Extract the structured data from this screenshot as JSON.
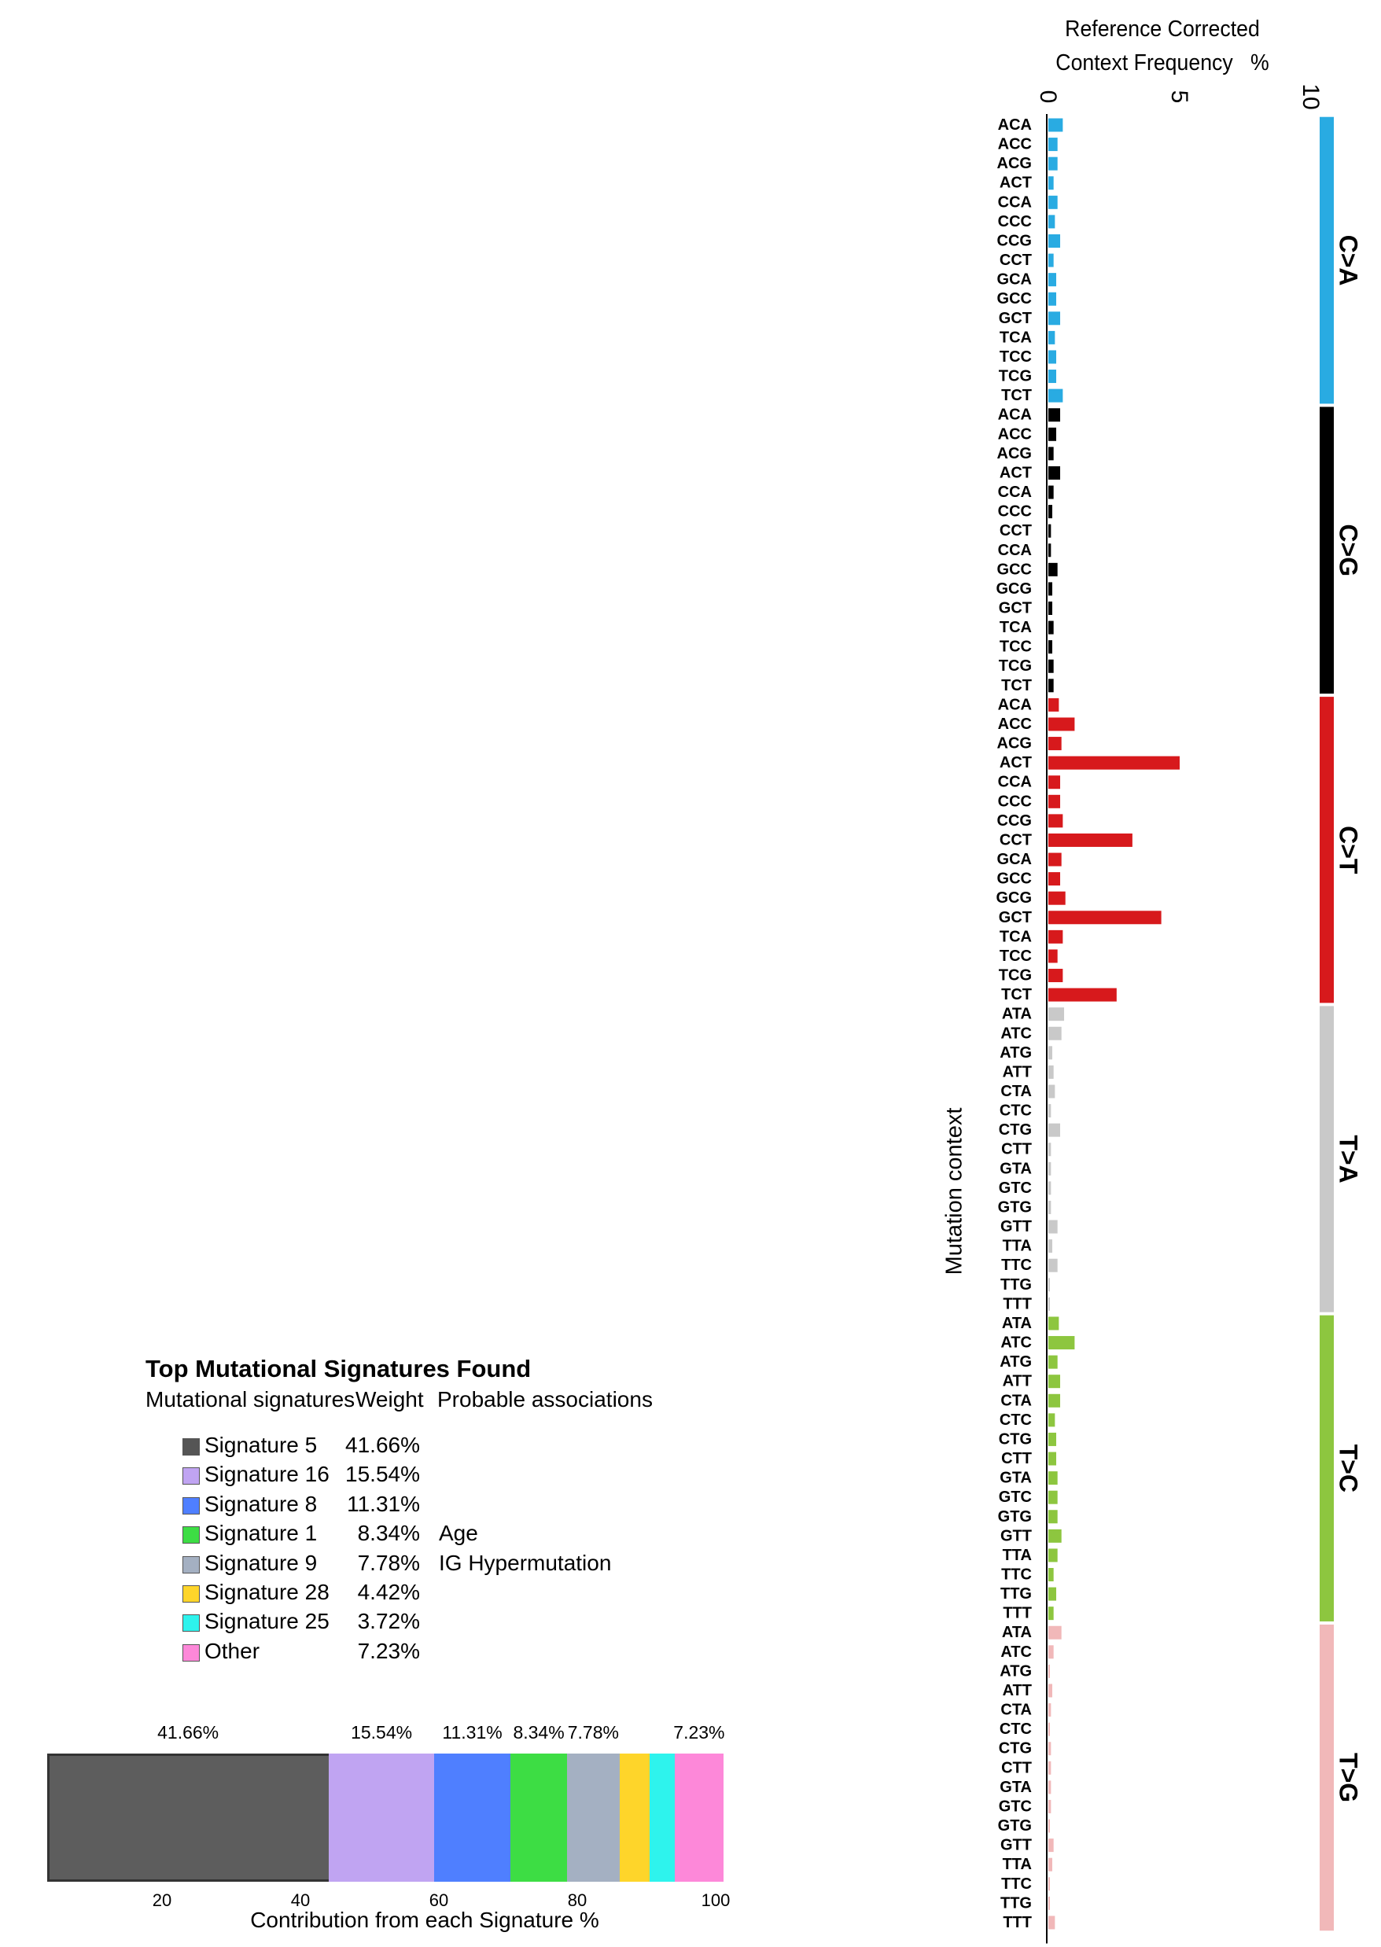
{
  "profile": {
    "title_line1": "Reference Corrected",
    "title_line2": "Context Frequency",
    "title_unit": "%",
    "axis_label": "Mutation context"
  },
  "legend": {
    "title": "Top Mutational Signatures Found",
    "col_signature": "Mutational signatures",
    "col_weight": "Weight",
    "col_assoc": "Probable associations",
    "rows": [
      {
        "name": "Signature 5",
        "weight": "41.66%",
        "assoc": "",
        "color": "#555555"
      },
      {
        "name": "Signature 16",
        "weight": "15.54%",
        "assoc": "",
        "color": "#c0a4f2"
      },
      {
        "name": "Signature 8",
        "weight": "11.31%",
        "assoc": "",
        "color": "#4f7fff"
      },
      {
        "name": "Signature 1",
        "weight": "8.34%",
        "assoc": "Age",
        "color": "#3ddd44"
      },
      {
        "name": "Signature 9",
        "weight": "7.78%",
        "assoc": "IG Hypermutation",
        "color": "#a4b0c2"
      },
      {
        "name": "Signature 28",
        "weight": "4.42%",
        "assoc": "",
        "color": "#fed52a"
      },
      {
        "name": "Signature 25",
        "weight": "3.72%",
        "assoc": "",
        "color": "#2ef3ed"
      },
      {
        "name": "Other",
        "weight": "7.23%",
        "assoc": "",
        "color": "#fd88d9"
      }
    ]
  },
  "stacked": {
    "xlabel": "Contribution from each Signature %",
    "ticks": [
      "20",
      "40",
      "60",
      "80",
      "100"
    ],
    "segment_labels": [
      "41.66%",
      "15.54%",
      "11.31%",
      "8.34%",
      "7.78%",
      "",
      "",
      "7.23%"
    ]
  },
  "chart_data": [
    {
      "type": "bar",
      "orientation": "horizontal",
      "title": "Reference Corrected Context Frequency %",
      "xlabel": "Reference Corrected Context Frequency %",
      "ylabel": "Mutation context",
      "xlim": [
        0,
        10
      ],
      "xticks": [
        0,
        5,
        10
      ],
      "groups": [
        {
          "name": "C>A",
          "color": "#29abe2",
          "categories": [
            "ACA",
            "ACC",
            "ACG",
            "ACT",
            "CCA",
            "CCC",
            "CCG",
            "CCT",
            "GCA",
            "GCC",
            "GCT",
            "TCA",
            "TCC",
            "TCG",
            "TCT"
          ],
          "values": [
            0.55,
            0.35,
            0.35,
            0.2,
            0.35,
            0.25,
            0.45,
            0.2,
            0.3,
            0.3,
            0.45,
            0.25,
            0.3,
            0.3,
            0.55
          ]
        },
        {
          "name": "C>G",
          "color": "#000000",
          "categories": [
            "ACA",
            "ACC",
            "ACG",
            "ACT",
            "CCA",
            "CCC",
            "CCT",
            "CCA",
            "GCC",
            "GCG",
            "GCT",
            "TCA",
            "TCC",
            "TCG",
            "TCT"
          ],
          "values": [
            0.45,
            0.3,
            0.2,
            0.45,
            0.2,
            0.15,
            0.1,
            0.1,
            0.35,
            0.15,
            0.15,
            0.2,
            0.15,
            0.2,
            0.2
          ]
        },
        {
          "name": "C>T",
          "color": "#d7191c",
          "categories": [
            "ACA",
            "ACC",
            "ACG",
            "ACT",
            "CCA",
            "CCC",
            "CCG",
            "CCT",
            "GCA",
            "GCC",
            "GCG",
            "GCT",
            "TCA",
            "TCC",
            "TCG",
            "TCT"
          ],
          "values": [
            0.4,
            1.0,
            0.5,
            5.0,
            0.45,
            0.45,
            0.55,
            3.2,
            0.5,
            0.45,
            0.65,
            4.3,
            0.55,
            0.35,
            0.55,
            2.6
          ]
        },
        {
          "name": "T>A",
          "color": "#c9c9c9",
          "categories": [
            "ATA",
            "ATC",
            "ATG",
            "ATT",
            "CTA",
            "CTC",
            "CTG",
            "CTT",
            "GTA",
            "GTC",
            "GTG",
            "GTT",
            "TTA",
            "TTC",
            "TTG",
            "TTT"
          ],
          "values": [
            0.6,
            0.5,
            0.15,
            0.2,
            0.25,
            0.1,
            0.45,
            0.1,
            0.1,
            0.1,
            0.1,
            0.35,
            0.15,
            0.35,
            0.05,
            0.05
          ]
        },
        {
          "name": "T>C",
          "color": "#8dc63f",
          "categories": [
            "ATA",
            "ATC",
            "ATG",
            "ATT",
            "CTA",
            "CTC",
            "CTG",
            "CTT",
            "GTA",
            "GTC",
            "GTG",
            "GTT",
            "TTA",
            "TTC",
            "TTG",
            "TTT"
          ],
          "values": [
            0.4,
            1.0,
            0.35,
            0.45,
            0.45,
            0.25,
            0.3,
            0.3,
            0.35,
            0.35,
            0.35,
            0.5,
            0.35,
            0.2,
            0.3,
            0.2
          ]
        },
        {
          "name": "T>G",
          "color": "#f1b8b9",
          "categories": [
            "ATA",
            "ATC",
            "ATG",
            "ATT",
            "CTA",
            "CTC",
            "CTG",
            "CTT",
            "GTA",
            "GTC",
            "GTG",
            "GTT",
            "TTA",
            "TTC",
            "TTG",
            "TTT"
          ],
          "values": [
            0.5,
            0.2,
            0.05,
            0.15,
            0.1,
            0.05,
            0.1,
            0.1,
            0.1,
            0.1,
            0.05,
            0.2,
            0.15,
            0.05,
            0.05,
            0.25
          ]
        }
      ]
    },
    {
      "type": "bar",
      "orientation": "horizontal-stacked",
      "title": "Top Mutational Signatures Found",
      "xlabel": "Contribution from each Signature %",
      "xlim": [
        0,
        100
      ],
      "xticks": [
        20,
        40,
        60,
        80,
        100
      ],
      "series": [
        {
          "name": "Signature 5",
          "value": 41.66,
          "color": "#5d5d5d"
        },
        {
          "name": "Signature 16",
          "value": 15.54,
          "color": "#c0a4f2"
        },
        {
          "name": "Signature 8",
          "value": 11.31,
          "color": "#4f7fff"
        },
        {
          "name": "Signature 1",
          "value": 8.34,
          "color": "#3ddd44"
        },
        {
          "name": "Signature 9",
          "value": 7.78,
          "color": "#a4b0c2"
        },
        {
          "name": "Signature 28",
          "value": 4.42,
          "color": "#fed52a"
        },
        {
          "name": "Signature 25",
          "value": 3.72,
          "color": "#2ef3ed"
        },
        {
          "name": "Other",
          "value": 7.23,
          "color": "#fd88d9"
        }
      ]
    }
  ]
}
